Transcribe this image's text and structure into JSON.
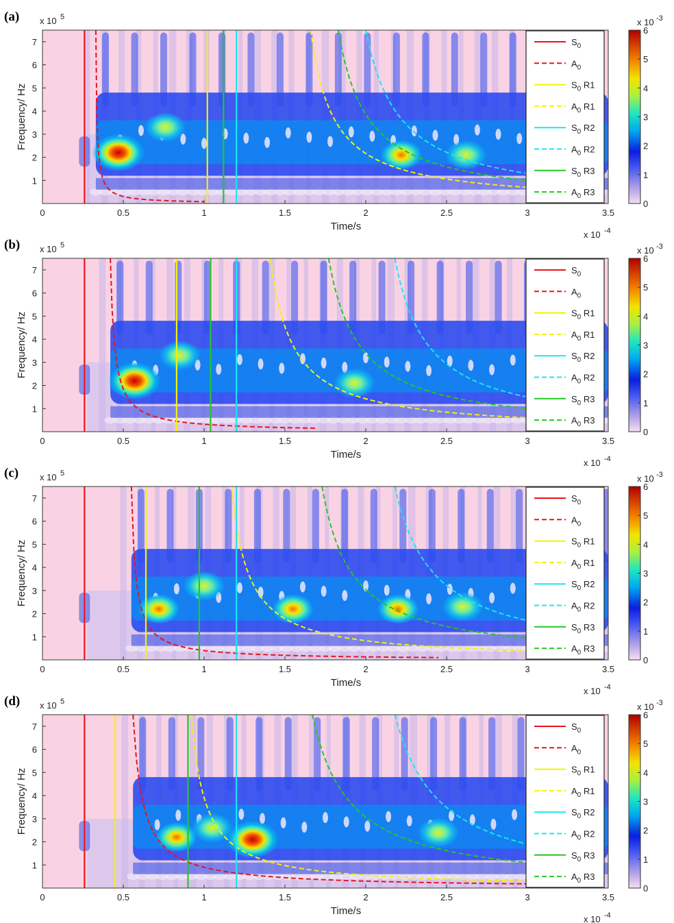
{
  "chart_data": [
    {
      "panel": "(a)",
      "type": "heatmap",
      "xlabel": "Time/s",
      "ylabel": "Frequency/  Hz",
      "x_exponent": "x 10",
      "x_exponent_power": "-4",
      "y_exponent": "x 10",
      "y_exponent_power": "5",
      "xlim": [
        0,
        3.5
      ],
      "ylim": [
        0,
        7.5
      ],
      "xticks": [
        "0",
        "0.5",
        "1",
        "1.5",
        "2",
        "2.5",
        "3",
        "3.5"
      ],
      "yticks": [
        "1",
        "2",
        "3",
        "4",
        "5",
        "6",
        "7"
      ],
      "colorbar": {
        "range": [
          0,
          6
        ],
        "ticks": [
          "0",
          "1",
          "2",
          "3",
          "4",
          "5",
          "6"
        ],
        "exponent": "x 10",
        "exponent_power": "-3"
      },
      "hotspots": [
        {
          "t": 0.47,
          "f": 2.2,
          "v": 6.0
        },
        {
          "t": 0.76,
          "f": 3.3,
          "v": 3.8
        },
        {
          "t": 2.22,
          "f": 2.1,
          "v": 4.2
        },
        {
          "t": 2.62,
          "f": 2.1,
          "v": 3.0
        }
      ],
      "s_lines": [
        {
          "mode": "S0",
          "t": 0.26
        },
        {
          "mode": "S0 R1",
          "t": 1.02
        },
        {
          "mode": "S0 R2",
          "t": 1.2
        },
        {
          "mode": "S0 R3",
          "t": 1.12
        }
      ],
      "a_curves": [
        {
          "mode": "A0",
          "t0": 0.33,
          "f_end": 0.08,
          "t_end": 1.0
        },
        {
          "mode": "A0 R1",
          "t0": 1.66,
          "f_end": 0.7,
          "t_end": 3.0
        },
        {
          "mode": "A0 R2",
          "t0": 2.0,
          "f_end": 1.3,
          "t_end": 3.0
        },
        {
          "mode": "A0 R3",
          "t0": 1.83,
          "f_end": 1.0,
          "t_end": 3.0
        }
      ]
    },
    {
      "panel": "(b)",
      "type": "heatmap",
      "xlabel": "Time/s",
      "ylabel": "Frequency/  Hz",
      "x_exponent": "x 10",
      "x_exponent_power": "-4",
      "y_exponent": "x 10",
      "y_exponent_power": "5",
      "xlim": [
        0,
        3.5
      ],
      "ylim": [
        0,
        7.5
      ],
      "xticks": [
        "0",
        "0.5",
        "1",
        "1.5",
        "2",
        "2.5",
        "3",
        "3.5"
      ],
      "yticks": [
        "1",
        "2",
        "3",
        "4",
        "5",
        "6",
        "7"
      ],
      "colorbar": {
        "range": [
          0,
          6
        ],
        "ticks": [
          "0",
          "1",
          "2",
          "3",
          "4",
          "5",
          "6"
        ],
        "exponent": "x 10",
        "exponent_power": "-3"
      },
      "hotspots": [
        {
          "t": 0.57,
          "f": 2.2,
          "v": 6.0
        },
        {
          "t": 0.85,
          "f": 3.3,
          "v": 3.2
        },
        {
          "t": 1.93,
          "f": 2.1,
          "v": 3.8
        }
      ],
      "s_lines": [
        {
          "mode": "S0",
          "t": 0.26
        },
        {
          "mode": "S0 R1",
          "t": 0.83
        },
        {
          "mode": "S0 R2",
          "t": 1.2
        },
        {
          "mode": "S0 R3",
          "t": 1.04
        }
      ],
      "a_curves": [
        {
          "mode": "A0",
          "t0": 0.42,
          "f_end": 0.15,
          "t_end": 1.7
        },
        {
          "mode": "A0 R1",
          "t0": 1.41,
          "f_end": 0.6,
          "t_end": 3.0
        },
        {
          "mode": "A0 R2",
          "t0": 2.18,
          "f_end": 1.5,
          "t_end": 3.0
        },
        {
          "mode": "A0 R3",
          "t0": 1.77,
          "f_end": 1.0,
          "t_end": 3.0
        }
      ]
    },
    {
      "panel": "(c)",
      "type": "heatmap",
      "xlabel": "Time/s",
      "ylabel": "Frequency/  Hz",
      "x_exponent": "x 10",
      "x_exponent_power": "-4",
      "y_exponent": "x 10",
      "y_exponent_power": "5",
      "xlim": [
        0,
        3.5
      ],
      "ylim": [
        0,
        7.5
      ],
      "xticks": [
        "0",
        "0.5",
        "1",
        "1.5",
        "2",
        "2.5",
        "3",
        "3.5"
      ],
      "yticks": [
        "1",
        "2",
        "3",
        "4",
        "5",
        "6",
        "7"
      ],
      "colorbar": {
        "range": [
          0,
          6
        ],
        "ticks": [
          "0",
          "1",
          "2",
          "3",
          "4",
          "5",
          "6"
        ],
        "exponent": "x 10",
        "exponent_power": "-3"
      },
      "hotspots": [
        {
          "t": 0.72,
          "f": 2.2,
          "v": 5.0
        },
        {
          "t": 1.0,
          "f": 3.2,
          "v": 3.0
        },
        {
          "t": 1.55,
          "f": 2.2,
          "v": 5.0
        },
        {
          "t": 2.2,
          "f": 2.2,
          "v": 4.2
        },
        {
          "t": 2.6,
          "f": 2.3,
          "v": 3.2
        }
      ],
      "s_lines": [
        {
          "mode": "S0",
          "t": 0.26
        },
        {
          "mode": "S0 R1",
          "t": 0.64
        },
        {
          "mode": "S0 R2",
          "t": 1.2
        },
        {
          "mode": "S0 R3",
          "t": 0.97
        }
      ],
      "a_curves": [
        {
          "mode": "A0",
          "t0": 0.55,
          "f_end": 0.1,
          "t_end": 2.45
        },
        {
          "mode": "A0 R1",
          "t0": 1.17,
          "f_end": 0.4,
          "t_end": 3.0
        },
        {
          "mode": "A0 R2",
          "t0": 2.18,
          "f_end": 1.7,
          "t_end": 3.0
        },
        {
          "mode": "A0 R3",
          "t0": 1.73,
          "f_end": 0.95,
          "t_end": 3.0
        }
      ]
    },
    {
      "panel": "(d)",
      "type": "heatmap",
      "xlabel": "Time/s",
      "ylabel": "Frequency/  Hz",
      "x_exponent": "x 10",
      "x_exponent_power": "-4",
      "y_exponent": "x 10",
      "y_exponent_power": "5",
      "xlim": [
        0,
        3.5
      ],
      "ylim": [
        0,
        7.5
      ],
      "xticks": [
        "0",
        "0.5",
        "1",
        "1.5",
        "2",
        "2.5",
        "3",
        "3.5"
      ],
      "yticks": [
        "1",
        "2",
        "3",
        "4",
        "5",
        "6",
        "7"
      ],
      "colorbar": {
        "range": [
          0,
          6
        ],
        "ticks": [
          "0",
          "1",
          "2",
          "3",
          "4",
          "5",
          "6"
        ],
        "exponent": "x 10",
        "exponent_power": "-3"
      },
      "hotspots": [
        {
          "t": 0.83,
          "f": 2.2,
          "v": 5.2
        },
        {
          "t": 1.3,
          "f": 2.1,
          "v": 6.0
        },
        {
          "t": 1.05,
          "f": 2.6,
          "v": 3.0
        },
        {
          "t": 2.45,
          "f": 2.4,
          "v": 3.2
        }
      ],
      "s_lines": [
        {
          "mode": "S0",
          "t": 0.26
        },
        {
          "mode": "S0 R1",
          "t": 0.45
        },
        {
          "mode": "S0 R2",
          "t": 1.2
        },
        {
          "mode": "S0 R3",
          "t": 0.9
        }
      ],
      "a_curves": [
        {
          "mode": "A0",
          "t0": 0.56,
          "f_end": 0.18,
          "t_end": 3.0
        },
        {
          "mode": "A0 R1",
          "t0": 0.92,
          "f_end": 0.3,
          "t_end": 3.0
        },
        {
          "mode": "A0 R2",
          "t0": 2.18,
          "f_end": 1.9,
          "t_end": 3.0
        },
        {
          "mode": "A0 R3",
          "t0": 1.67,
          "f_end": 1.1,
          "t_end": 3.0
        }
      ]
    }
  ],
  "legend": [
    {
      "base": "S",
      "sub": "0",
      "suffix": "",
      "color": "#e8141c",
      "dashed": false
    },
    {
      "base": "A",
      "sub": "0",
      "suffix": "",
      "color": "#e8141c",
      "dashed": true
    },
    {
      "base": "S",
      "sub": "0",
      "suffix": " R1",
      "color": "#f2f20a",
      "dashed": false
    },
    {
      "base": "A",
      "sub": "0",
      "suffix": " R1",
      "color": "#f2f20a",
      "dashed": true
    },
    {
      "base": "S",
      "sub": "0",
      "suffix": " R2",
      "color": "#19e6f0",
      "dashed": false
    },
    {
      "base": "A",
      "sub": "0",
      "suffix": " R2",
      "color": "#19e6f0",
      "dashed": true
    },
    {
      "base": "S",
      "sub": "0",
      "suffix": " R3",
      "color": "#23c823",
      "dashed": false
    },
    {
      "base": "A",
      "sub": "0",
      "suffix": " R3",
      "color": "#23c823",
      "dashed": true
    }
  ],
  "colors": {
    "background": "#f9d3e4",
    "low": "#d9c6ec",
    "mid": "#1840e8",
    "high": "#c00000"
  }
}
